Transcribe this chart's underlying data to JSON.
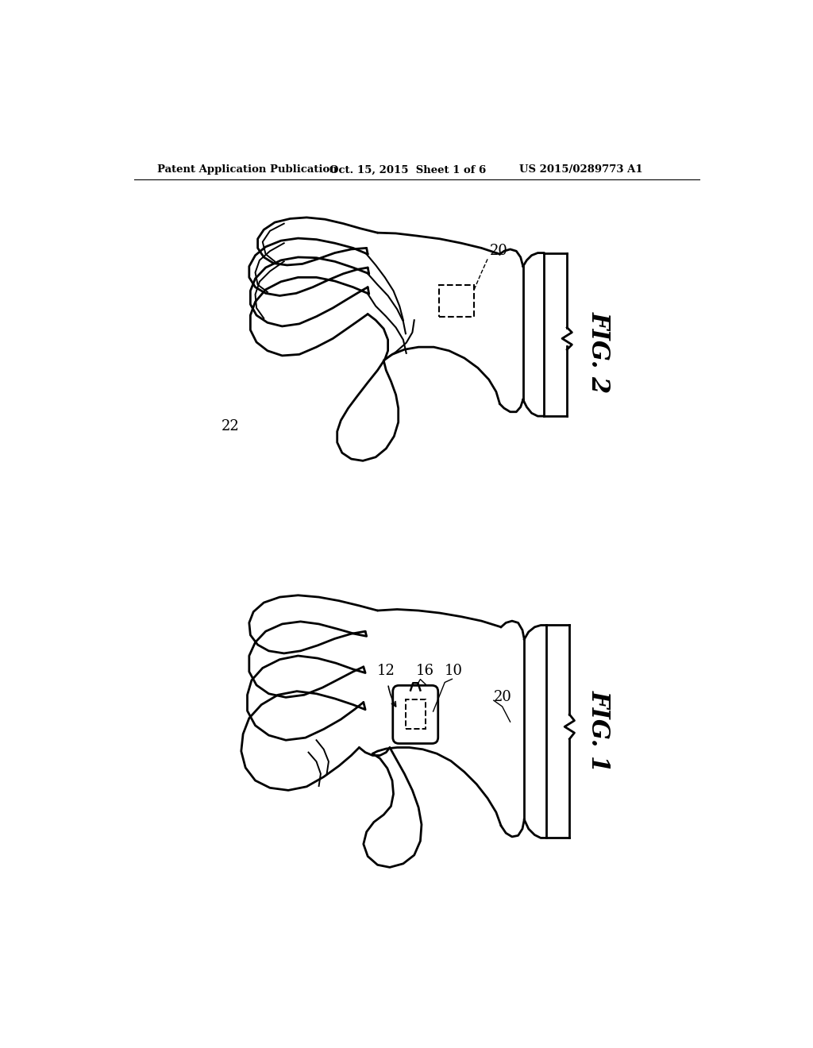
{
  "bg_color": "#ffffff",
  "header_left": "Patent Application Publication",
  "header_mid": "Oct. 15, 2015  Sheet 1 of 6",
  "header_right": "US 2015/0289773 A1",
  "fig1_label": "FIG. 1",
  "fig2_label": "FIG. 2",
  "label_10": "10",
  "label_12": "12",
  "label_16": "16",
  "label_20": "20",
  "label_22": "22",
  "line_color": "#000000",
  "line_width": 2.0
}
